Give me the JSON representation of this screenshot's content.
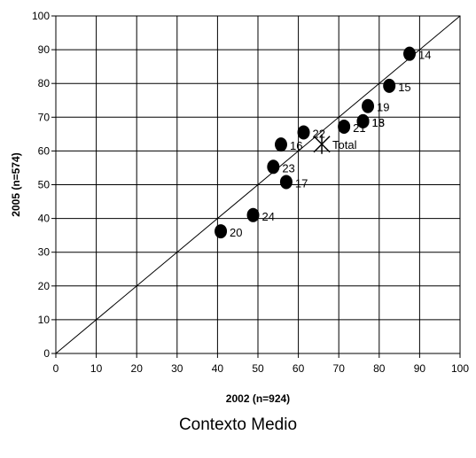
{
  "chart_data": {
    "type": "scatter",
    "title": "",
    "xlabel": "2002 (n=924)",
    "ylabel": "2005 (n=574)",
    "xlim": [
      0,
      100
    ],
    "ylim": [
      0,
      100
    ],
    "xticks": [
      0,
      10,
      20,
      30,
      40,
      50,
      60,
      70,
      80,
      90,
      100
    ],
    "yticks": [
      0,
      10,
      20,
      30,
      40,
      50,
      60,
      70,
      80,
      90,
      100
    ],
    "grid": true,
    "legend": "none",
    "reference_line": {
      "from": [
        0,
        0
      ],
      "to": [
        100,
        100
      ]
    },
    "points": [
      {
        "label": "14",
        "x": 87.5,
        "y": 88.8
      },
      {
        "label": "15",
        "x": 82.5,
        "y": 79.3
      },
      {
        "label": "19",
        "x": 77.2,
        "y": 73.3
      },
      {
        "label": "18",
        "x": 76.0,
        "y": 68.8
      },
      {
        "label": "13",
        "x": 76.0,
        "y": 68.8
      },
      {
        "label": "21",
        "x": 71.3,
        "y": 67.2
      },
      {
        "label": "22",
        "x": 61.3,
        "y": 65.5
      },
      {
        "label": "16",
        "x": 55.7,
        "y": 61.9
      },
      {
        "label": "23",
        "x": 53.8,
        "y": 55.3
      },
      {
        "label": "17",
        "x": 57.0,
        "y": 50.8
      },
      {
        "label": "24",
        "x": 48.8,
        "y": 41.0
      },
      {
        "label": "20",
        "x": 40.8,
        "y": 36.2
      }
    ],
    "total": {
      "label": "Total",
      "x": 65.8,
      "y": 62.0
    },
    "caption": "Contexto Medio"
  },
  "colors": {
    "marker": "#000000",
    "grid": "#000000",
    "line": "#000000"
  }
}
